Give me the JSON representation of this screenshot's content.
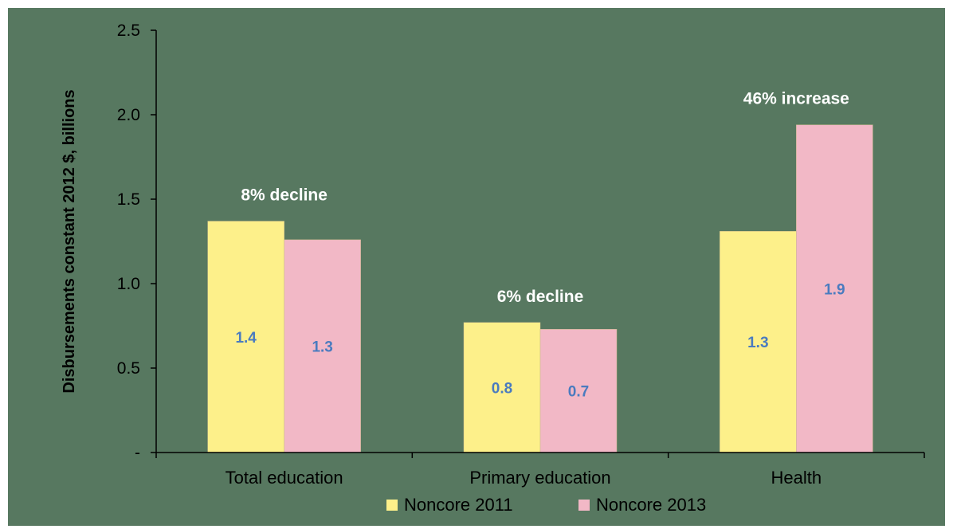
{
  "chart_data": {
    "type": "bar",
    "title": "",
    "xlabel": "",
    "ylabel": "Disbursements constant 2012 $, billions",
    "categories": [
      "Total education",
      "Primary education",
      "Health"
    ],
    "series": [
      {
        "name": "Noncore 2011",
        "values": [
          1.37,
          0.77,
          1.31
        ],
        "labels": [
          "1.4",
          "0.8",
          "1.3"
        ],
        "color": "#fdf08a"
      },
      {
        "name": "Noncore 2013",
        "values": [
          1.26,
          0.73,
          1.94
        ],
        "labels": [
          "1.3",
          "0.7",
          "1.9"
        ],
        "color": "#f2b8c6"
      }
    ],
    "ylim": [
      0,
      2.5
    ],
    "yticks": [
      {
        "value": 0,
        "label": "-"
      },
      {
        "value": 0.5,
        "label": "0.5"
      },
      {
        "value": 1.0,
        "label": "1.0"
      },
      {
        "value": 1.5,
        "label": "1.5"
      },
      {
        "value": 2.0,
        "label": "2.0"
      },
      {
        "value": 2.5,
        "label": "2.5"
      }
    ],
    "annotations": [
      "8% decline",
      "6% decline",
      "46% increase"
    ],
    "grid": false,
    "legend_position": "bottom",
    "plot_background": "#577860",
    "data_label_color": "#4a7bbf",
    "annotation_color": "#ffffff"
  }
}
